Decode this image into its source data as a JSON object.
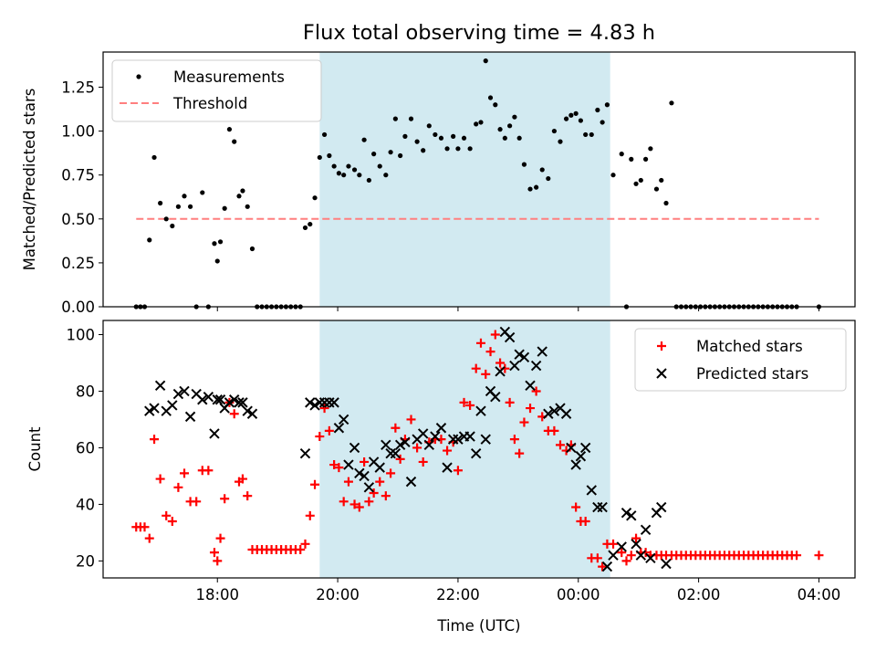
{
  "figure": {
    "title": "Flux total observing time = 4.83 h"
  },
  "colors": {
    "observing_window": "#add8e6",
    "threshold": "#ff7f7f",
    "measurement": "#000000",
    "matched": "#ff0000",
    "predicted": "#000000"
  },
  "chart_data": [
    {
      "type": "scatter",
      "panel": "top",
      "title": "Flux total observing time = 4.83 h",
      "xlabel": "",
      "ylabel": "Matched/Predicted stars",
      "x_unit": "hours since 00:00 UTC (day 1)",
      "xlim": [
        16.1,
        28.6
      ],
      "ylim": [
        0,
        1.45
      ],
      "yticks": [
        "0.00",
        "0.25",
        "0.50",
        "0.75",
        "1.00",
        "1.25"
      ],
      "ytick_values": [
        0,
        0.25,
        0.5,
        0.75,
        1.0,
        1.25
      ],
      "legend": {
        "position": "upper left",
        "entries": [
          "Measurements",
          "Threshold"
        ]
      },
      "observing_window": [
        19.7,
        24.53
      ],
      "threshold": {
        "name": "Threshold",
        "value": 0.5,
        "x": [
          16.65,
          28.0
        ]
      },
      "series": [
        {
          "name": "Measurements",
          "x": [
            16.65,
            16.72,
            16.79,
            16.87,
            16.95,
            17.05,
            17.15,
            17.25,
            17.35,
            17.45,
            17.55,
            17.65,
            17.75,
            17.85,
            17.95,
            18.0,
            18.05,
            18.12,
            18.2,
            18.28,
            18.36,
            18.42,
            18.5,
            18.58,
            18.66,
            18.74,
            18.82,
            18.9,
            18.98,
            19.06,
            19.14,
            19.22,
            19.3,
            19.38,
            19.46,
            19.54,
            19.62,
            19.7,
            19.78,
            19.86,
            19.94,
            20.02,
            20.1,
            20.18,
            20.28,
            20.36,
            20.44,
            20.52,
            20.6,
            20.7,
            20.8,
            20.88,
            20.96,
            21.04,
            21.12,
            21.22,
            21.32,
            21.42,
            21.52,
            21.62,
            21.72,
            21.82,
            21.92,
            22.0,
            22.1,
            22.2,
            22.3,
            22.38,
            22.46,
            22.54,
            22.62,
            22.7,
            22.78,
            22.86,
            22.94,
            23.02,
            23.1,
            23.2,
            23.3,
            23.4,
            23.5,
            23.6,
            23.7,
            23.8,
            23.88,
            23.96,
            24.04,
            24.12,
            24.22,
            24.32,
            24.4,
            24.48,
            24.58,
            24.72,
            24.8,
            24.88,
            24.96,
            25.04,
            25.12,
            25.2,
            25.3,
            25.38,
            25.46,
            25.55,
            25.63,
            25.71,
            25.79,
            25.87,
            25.95,
            26.03,
            26.11,
            26.19,
            26.27,
            26.35,
            26.43,
            26.51,
            26.59,
            26.67,
            26.75,
            26.83,
            26.91,
            26.99,
            27.07,
            27.15,
            27.23,
            27.31,
            27.39,
            27.47,
            27.55,
            27.63,
            28.0
          ],
          "y": [
            0.0,
            0.0,
            0.0,
            0.38,
            0.85,
            0.59,
            0.5,
            0.46,
            0.57,
            0.63,
            0.57,
            0.0,
            0.65,
            0.0,
            0.36,
            0.26,
            0.37,
            0.56,
            1.01,
            0.94,
            0.63,
            0.66,
            0.57,
            0.33,
            0.0,
            0.0,
            0.0,
            0.0,
            0.0,
            0.0,
            0.0,
            0.0,
            0.0,
            0.0,
            0.45,
            0.47,
            0.62,
            0.85,
            0.98,
            0.86,
            0.8,
            0.76,
            0.75,
            0.8,
            0.78,
            0.75,
            0.95,
            0.72,
            0.87,
            0.8,
            0.75,
            0.88,
            1.07,
            0.86,
            0.97,
            1.07,
            0.94,
            0.89,
            1.03,
            0.98,
            0.96,
            0.9,
            0.97,
            0.9,
            0.96,
            0.9,
            1.04,
            1.05,
            1.4,
            1.19,
            1.15,
            1.01,
            0.96,
            1.03,
            1.08,
            0.96,
            0.81,
            0.67,
            0.68,
            0.78,
            0.73,
            1.0,
            0.94,
            1.07,
            1.09,
            1.1,
            1.06,
            0.98,
            0.98,
            1.12,
            1.05,
            1.15,
            0.75,
            0.87,
            0.0,
            0.84,
            0.7,
            0.72,
            0.84,
            0.9,
            0.67,
            0.72,
            0.59,
            1.16,
            0.0,
            0.0,
            0.0,
            0.0,
            0.0,
            0.0,
            0.0,
            0.0,
            0.0,
            0.0,
            0.0,
            0.0,
            0.0,
            0.0,
            0.0,
            0.0,
            0.0,
            0.0,
            0.0,
            0.0,
            0.0,
            0.0,
            0.0,
            0.0,
            0.0,
            0.0,
            0.0
          ]
        }
      ]
    },
    {
      "type": "scatter",
      "panel": "bottom",
      "xlabel": "Time (UTC)",
      "ylabel": "Count",
      "x_unit": "hours since 00:00 UTC (day 1)",
      "xlim": [
        16.1,
        28.6
      ],
      "ylim": [
        14,
        105
      ],
      "xticks": [
        "18:00",
        "20:00",
        "22:00",
        "00:00",
        "02:00",
        "04:00"
      ],
      "xtick_values": [
        18,
        20,
        22,
        24,
        26,
        28
      ],
      "yticks": [
        "20",
        "40",
        "60",
        "80",
        "100"
      ],
      "ytick_values": [
        20,
        40,
        60,
        80,
        100
      ],
      "legend": {
        "position": "upper right",
        "entries": [
          "Matched stars",
          "Predicted stars"
        ]
      },
      "observing_window": [
        19.7,
        24.53
      ],
      "series": [
        {
          "name": "Matched stars",
          "marker": "+",
          "x": [
            16.65,
            16.72,
            16.79,
            16.87,
            16.95,
            17.05,
            17.15,
            17.25,
            17.35,
            17.45,
            17.55,
            17.65,
            17.75,
            17.85,
            17.95,
            18.0,
            18.05,
            18.12,
            18.2,
            18.28,
            18.36,
            18.42,
            18.5,
            18.58,
            18.66,
            18.74,
            18.82,
            18.9,
            18.98,
            19.06,
            19.14,
            19.22,
            19.3,
            19.38,
            19.46,
            19.54,
            19.62,
            19.7,
            19.78,
            19.86,
            19.94,
            20.02,
            20.1,
            20.18,
            20.28,
            20.36,
            20.44,
            20.52,
            20.6,
            20.7,
            20.8,
            20.88,
            20.96,
            21.04,
            21.12,
            21.22,
            21.32,
            21.42,
            21.52,
            21.62,
            21.72,
            21.82,
            21.92,
            22.0,
            22.1,
            22.2,
            22.3,
            22.38,
            22.46,
            22.54,
            22.62,
            22.7,
            22.78,
            22.86,
            22.94,
            23.02,
            23.1,
            23.2,
            23.3,
            23.4,
            23.5,
            23.6,
            23.7,
            23.8,
            23.88,
            23.96,
            24.04,
            24.12,
            24.22,
            24.32,
            24.4,
            24.48,
            24.58,
            24.72,
            24.8,
            24.88,
            24.96,
            25.04,
            25.12,
            25.2,
            25.3,
            25.38,
            25.46,
            25.55,
            25.63,
            25.71,
            25.79,
            25.87,
            25.95,
            26.03,
            26.11,
            26.19,
            26.27,
            26.35,
            26.43,
            26.51,
            26.59,
            26.67,
            26.75,
            26.83,
            26.91,
            26.99,
            27.07,
            27.15,
            27.23,
            27.31,
            27.39,
            27.47,
            27.55,
            27.63,
            28.0
          ],
          "y": [
            32,
            32,
            32,
            28,
            63,
            49,
            36,
            34,
            46,
            51,
            41,
            41,
            52,
            52,
            23,
            20,
            28,
            42,
            76,
            72,
            48,
            49,
            43,
            24,
            24,
            24,
            24,
            24,
            24,
            24,
            24,
            24,
            24,
            24,
            26,
            36,
            47,
            64,
            74,
            66,
            54,
            53,
            41,
            48,
            40,
            39,
            55,
            41,
            44,
            48,
            43,
            51,
            67,
            56,
            63,
            70,
            60,
            55,
            62,
            63,
            63,
            59,
            62,
            52,
            76,
            75,
            88,
            97,
            86,
            94,
            100,
            90,
            88,
            76,
            63,
            58,
            69,
            74,
            80,
            71,
            66,
            66,
            61,
            59,
            61,
            39,
            34,
            34,
            21,
            21,
            18,
            26,
            26,
            23,
            20,
            22,
            28,
            23,
            23,
            22,
            22,
            22,
            22,
            22,
            22,
            22,
            22,
            22,
            22,
            22,
            22,
            22,
            22,
            22,
            22,
            22,
            22,
            22,
            22,
            22,
            22,
            22,
            22,
            22,
            22,
            22,
            22,
            22,
            22,
            22,
            22
          ]
        },
        {
          "name": "Predicted stars",
          "marker": "x",
          "x": [
            16.87,
            16.95,
            17.05,
            17.15,
            17.25,
            17.35,
            17.45,
            17.55,
            17.65,
            17.75,
            17.85,
            17.95,
            18.0,
            18.05,
            18.12,
            18.2,
            18.28,
            18.36,
            18.42,
            18.5,
            18.58,
            19.46,
            19.54,
            19.62,
            19.7,
            19.78,
            19.86,
            19.94,
            20.02,
            20.1,
            20.18,
            20.28,
            20.36,
            20.44,
            20.52,
            20.6,
            20.7,
            20.8,
            20.88,
            20.96,
            21.04,
            21.12,
            21.22,
            21.32,
            21.42,
            21.52,
            21.62,
            21.72,
            21.82,
            21.92,
            22.0,
            22.1,
            22.2,
            22.3,
            22.38,
            22.46,
            22.54,
            22.62,
            22.7,
            22.78,
            22.86,
            22.94,
            23.02,
            23.1,
            23.2,
            23.3,
            23.4,
            23.5,
            23.6,
            23.7,
            23.8,
            23.88,
            23.96,
            24.04,
            24.12,
            24.22,
            24.32,
            24.4,
            24.48,
            24.58,
            24.72,
            24.8,
            24.88,
            24.96,
            25.04,
            25.12,
            25.2,
            25.3,
            25.38,
            25.46
          ],
          "y": [
            73,
            74,
            82,
            73,
            75,
            79,
            80,
            71,
            79,
            77,
            78,
            65,
            77,
            77,
            74,
            76,
            77,
            76,
            76,
            73,
            72,
            58,
            76,
            75,
            76,
            76,
            76,
            76,
            67,
            70,
            54,
            60,
            51,
            50,
            46,
            55,
            53,
            61,
            58,
            58,
            61,
            62,
            48,
            63,
            65,
            61,
            64,
            67,
            53,
            63,
            63,
            64,
            64,
            58,
            73,
            63,
            80,
            78,
            87,
            101,
            99,
            89,
            93,
            92,
            82,
            89,
            94,
            72,
            73,
            74,
            72,
            60,
            54,
            57,
            60,
            45,
            39,
            39,
            18,
            22,
            25,
            37,
            36,
            26,
            22,
            31,
            21,
            37,
            39,
            19
          ]
        }
      ]
    }
  ]
}
